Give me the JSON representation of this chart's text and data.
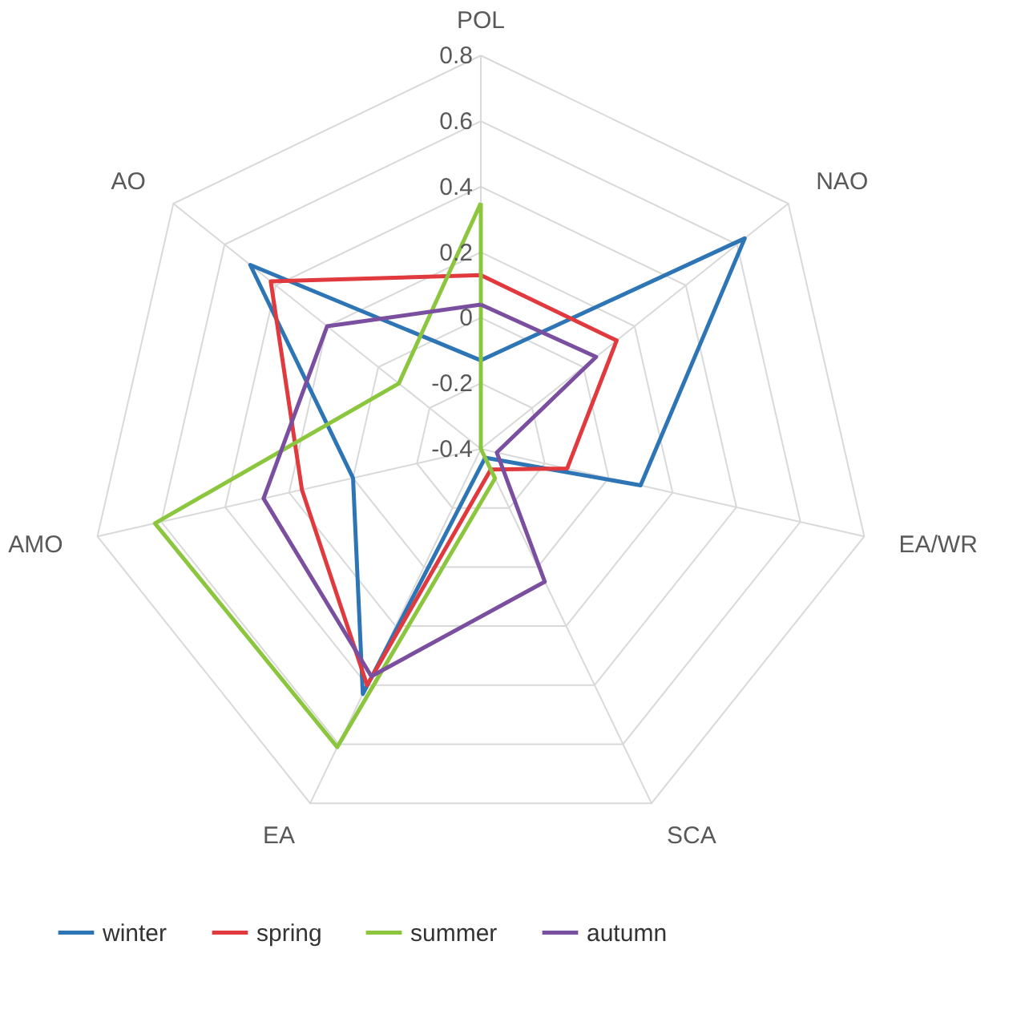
{
  "chart_data": {
    "type": "radar",
    "categories": [
      "POL",
      "NAO",
      "EA/WR",
      "SCA",
      "EA",
      "AMO",
      "AO"
    ],
    "series": [
      {
        "name": "winter",
        "color": "#2e75b6",
        "values": [
          -0.13,
          0.63,
          0.1,
          -0.37,
          0.43,
          0.0,
          0.5
        ]
      },
      {
        "name": "spring",
        "color": "#e0393e",
        "values": [
          0.13,
          0.13,
          -0.13,
          -0.33,
          0.4,
          0.16,
          0.42
        ]
      },
      {
        "name": "summer",
        "color": "#8cc63e",
        "values": [
          0.35,
          -0.4,
          -0.4,
          -0.3,
          0.61,
          0.62,
          -0.08
        ]
      },
      {
        "name": "autumn",
        "color": "#7b4fa0",
        "values": [
          0.04,
          0.05,
          -0.35,
          0.05,
          0.37,
          0.28,
          0.2
        ]
      }
    ],
    "ylim": [
      -0.4,
      0.8
    ],
    "yticks": [
      -0.4,
      -0.2,
      0,
      0.2,
      0.4,
      0.6,
      0.8
    ],
    "grid": true,
    "legend": "bottom"
  }
}
